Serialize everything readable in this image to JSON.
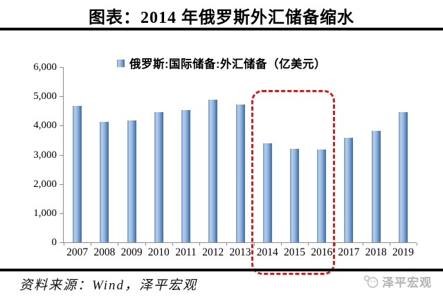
{
  "header": {
    "title": "图表：2014 年俄罗斯外汇储备缩水"
  },
  "chart_data": {
    "type": "bar",
    "title": "图表：2014 年俄罗斯外汇储备缩水",
    "legend": "俄罗斯:国际储备:外汇储备（亿美元）",
    "legend_position": "top",
    "categories": [
      "2007",
      "2008",
      "2009",
      "2010",
      "2011",
      "2012",
      "2013",
      "2014",
      "2015",
      "2016",
      "2017",
      "2018",
      "2019"
    ],
    "values": [
      4670,
      4120,
      4180,
      4450,
      4540,
      4880,
      4720,
      3400,
      3190,
      3170,
      3570,
      3830,
      4450
    ],
    "xlabel": "",
    "ylabel": "",
    "ylim": [
      0,
      6000
    ],
    "ytick_step": 1000,
    "ytick_labels": [
      "0",
      "1,000",
      "2,000",
      "3,000",
      "4,000",
      "5,000",
      "6,000"
    ],
    "grid": false,
    "bar_color": "#4f81bd",
    "annotation": {
      "type": "dashed-box",
      "categories": [
        "2014",
        "2015",
        "2016"
      ],
      "color": "#ee1111"
    }
  },
  "footer": {
    "source": "资料来源：Wind，泽平宏观",
    "brand": "泽平宏观"
  },
  "colors": {
    "axis": "#8c8c8c",
    "bar_edge": "#41719c",
    "bar_light": "#b7cfec",
    "highlight_red": "#ee1111",
    "brand_gray": "#b3b3b3",
    "rule_black": "#000000"
  }
}
